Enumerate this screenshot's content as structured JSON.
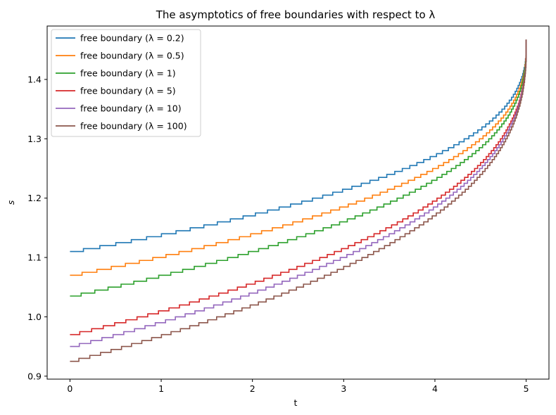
{
  "chart_data": {
    "type": "line",
    "title": "The asymptotics of free boundaries with respect to λ",
    "xlabel": "t",
    "ylabel": "s",
    "xlim": [
      -0.25,
      5.25
    ],
    "ylim": [
      0.895,
      1.49
    ],
    "xticks": [
      0,
      1,
      2,
      3,
      4,
      5
    ],
    "xtick_labels": [
      "0",
      "1",
      "2",
      "3",
      "4",
      "5"
    ],
    "yticks": [
      0.9,
      1.0,
      1.1,
      1.2,
      1.3,
      1.4
    ],
    "ytick_labels": [
      "0.9",
      "1.0",
      "1.1",
      "1.2",
      "1.3",
      "1.4"
    ],
    "grid": false,
    "legend_position": "top-left",
    "step_size": 0.005,
    "series": [
      {
        "name": "free boundary (λ = 0.2)",
        "color": "#1f77b4",
        "start": 1.111,
        "end": 1.467
      },
      {
        "name": "free boundary (λ = 0.5)",
        "color": "#ff7f0e",
        "start": 1.071,
        "end": 1.467
      },
      {
        "name": "free boundary (λ = 1)",
        "color": "#2ca02c",
        "start": 1.036,
        "end": 1.467
      },
      {
        "name": "free boundary (λ = 5)",
        "color": "#d62728",
        "start": 0.971,
        "end": 1.467
      },
      {
        "name": "free boundary (λ = 10)",
        "color": "#9467bd",
        "start": 0.951,
        "end": 1.467
      },
      {
        "name": "free boundary (λ = 100)",
        "color": "#8c564b",
        "start": 0.926,
        "end": 1.467
      }
    ]
  }
}
